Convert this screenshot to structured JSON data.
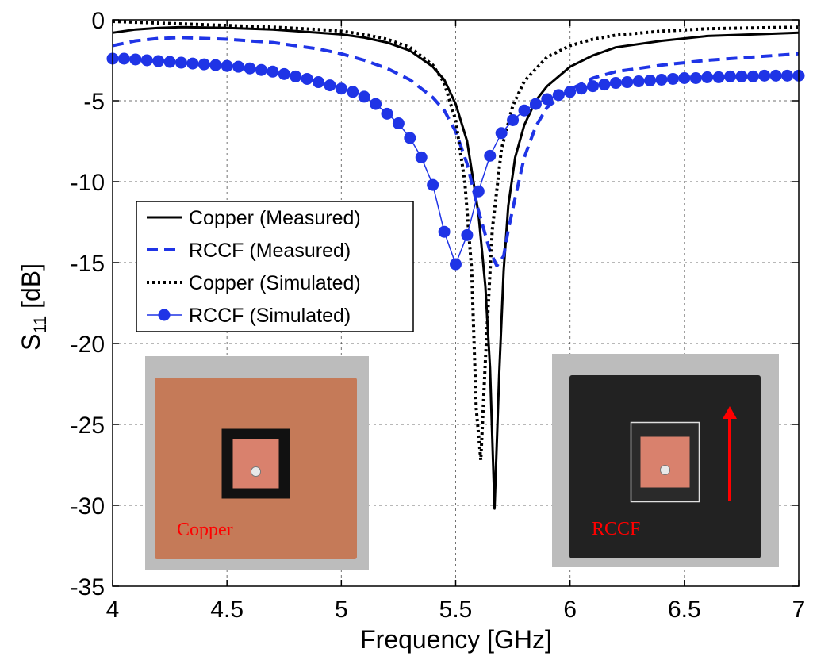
{
  "chart_data": {
    "type": "line",
    "xlabel": "Frequency [GHz]",
    "ylabel_main": "S",
    "ylabel_sub": "11",
    "ylabel_unit": " [dB]",
    "xlim": [
      4,
      7
    ],
    "ylim": [
      -35,
      0
    ],
    "xticks": [
      4,
      4.5,
      5,
      5.5,
      6,
      6.5,
      7
    ],
    "xtick_labels": [
      "4",
      "4.5",
      "5",
      "5.5",
      "6",
      "6.5",
      "7"
    ],
    "yticks": [
      0,
      -5,
      -10,
      -15,
      -20,
      -25,
      -30,
      -35
    ],
    "ytick_labels": [
      "0",
      "-5",
      "-10",
      "-15",
      "-20",
      "-25",
      "-30",
      "-35"
    ],
    "grid": true,
    "legend_position": "left-middle",
    "series": [
      {
        "name": "Copper (Measured)",
        "color": "#000000",
        "style": "solid",
        "marker": "none",
        "x": [
          4.0,
          4.1,
          4.2,
          4.3,
          4.5,
          4.7,
          4.9,
          5.0,
          5.1,
          5.2,
          5.3,
          5.4,
          5.45,
          5.5,
          5.55,
          5.6,
          5.63,
          5.65,
          5.67,
          5.69,
          5.71,
          5.73,
          5.76,
          5.8,
          5.85,
          5.9,
          6.0,
          6.1,
          6.2,
          6.4,
          6.6,
          6.8,
          7.0
        ],
        "y": [
          -0.8,
          -0.6,
          -0.5,
          -0.45,
          -0.5,
          -0.6,
          -0.8,
          -0.9,
          -1.1,
          -1.4,
          -1.9,
          -2.9,
          -3.7,
          -5.2,
          -7.5,
          -12,
          -16.5,
          -21.5,
          -30.2,
          -22,
          -15.5,
          -11.5,
          -8.5,
          -6.5,
          -5,
          -4.1,
          -2.9,
          -2.2,
          -1.7,
          -1.3,
          -1.0,
          -0.9,
          -0.8
        ]
      },
      {
        "name": "RCCF (Measured)",
        "color": "#1f34e6",
        "style": "dashed",
        "marker": "none",
        "x": [
          4.0,
          4.1,
          4.2,
          4.3,
          4.5,
          4.7,
          4.9,
          5.0,
          5.1,
          5.2,
          5.3,
          5.4,
          5.45,
          5.5,
          5.55,
          5.6,
          5.65,
          5.68,
          5.71,
          5.73,
          5.76,
          5.8,
          5.85,
          5.9,
          6.0,
          6.1,
          6.2,
          6.4,
          6.6,
          6.8,
          7.0
        ],
        "y": [
          -1.6,
          -1.3,
          -1.15,
          -1.1,
          -1.2,
          -1.4,
          -1.8,
          -2.1,
          -2.5,
          -3.0,
          -3.7,
          -4.8,
          -5.6,
          -6.9,
          -8.9,
          -11.8,
          -14.3,
          -15.2,
          -14.6,
          -13,
          -11,
          -8.5,
          -6.6,
          -5.4,
          -4.3,
          -3.6,
          -3.2,
          -2.8,
          -2.5,
          -2.3,
          -2.1
        ]
      },
      {
        "name": "Copper (Simulated)",
        "color": "#000000",
        "style": "dotted",
        "marker": "none",
        "x": [
          4.0,
          4.1,
          4.2,
          4.3,
          4.5,
          4.7,
          4.9,
          5.0,
          5.1,
          5.2,
          5.3,
          5.4,
          5.45,
          5.5,
          5.54,
          5.57,
          5.59,
          5.61,
          5.63,
          5.66,
          5.7,
          5.75,
          5.8,
          5.9,
          6.0,
          6.1,
          6.2,
          6.4,
          6.6,
          6.8,
          7.0
        ],
        "y": [
          -0.1,
          -0.15,
          -0.2,
          -0.25,
          -0.35,
          -0.45,
          -0.6,
          -0.7,
          -0.9,
          -1.2,
          -1.7,
          -2.8,
          -3.9,
          -6.2,
          -10,
          -15.5,
          -24,
          -27.2,
          -21,
          -13,
          -8,
          -5.3,
          -3.8,
          -2.3,
          -1.6,
          -1.2,
          -0.95,
          -0.7,
          -0.55,
          -0.5,
          -0.45
        ]
      },
      {
        "name": "RCCF (Simulated)",
        "color": "#1f34e6",
        "style": "solid",
        "marker": "circle",
        "x": [
          4.0,
          4.05,
          4.1,
          4.15,
          4.2,
          4.25,
          4.3,
          4.35,
          4.4,
          4.45,
          4.5,
          4.55,
          4.6,
          4.65,
          4.7,
          4.75,
          4.8,
          4.85,
          4.9,
          4.95,
          5.0,
          5.05,
          5.1,
          5.15,
          5.2,
          5.25,
          5.3,
          5.35,
          5.4,
          5.45,
          5.5,
          5.55,
          5.6,
          5.65,
          5.7,
          5.75,
          5.8,
          5.85,
          5.9,
          5.95,
          6.0,
          6.05,
          6.1,
          6.15,
          6.2,
          6.25,
          6.3,
          6.35,
          6.4,
          6.45,
          6.5,
          6.55,
          6.6,
          6.65,
          6.7,
          6.75,
          6.8,
          6.85,
          6.9,
          6.95,
          7.0
        ],
        "y": [
          -2.4,
          -2.4,
          -2.45,
          -2.5,
          -2.55,
          -2.6,
          -2.65,
          -2.7,
          -2.75,
          -2.8,
          -2.85,
          -2.9,
          -3.0,
          -3.1,
          -3.2,
          -3.35,
          -3.5,
          -3.65,
          -3.85,
          -4.05,
          -4.25,
          -4.45,
          -4.75,
          -5.2,
          -5.8,
          -6.4,
          -7.3,
          -8.5,
          -10.2,
          -13.1,
          -15.1,
          -13.3,
          -10.6,
          -8.4,
          -7.0,
          -6.2,
          -5.6,
          -5.2,
          -4.9,
          -4.65,
          -4.45,
          -4.25,
          -4.1,
          -4.0,
          -3.9,
          -3.85,
          -3.8,
          -3.75,
          -3.7,
          -3.65,
          -3.6,
          -3.6,
          -3.55,
          -3.55,
          -3.5,
          -3.5,
          -3.5,
          -3.45,
          -3.45,
          -3.45,
          -3.45
        ]
      }
    ],
    "insets": [
      {
        "caption": "Copper",
        "caption_color": "#ff0000",
        "board_color": "#c57a58",
        "patch_color": "#d9816d"
      },
      {
        "caption": "RCCF",
        "caption_color": "#ff0000",
        "board_color": "#222222",
        "patch_color": "#d9816d"
      }
    ]
  }
}
